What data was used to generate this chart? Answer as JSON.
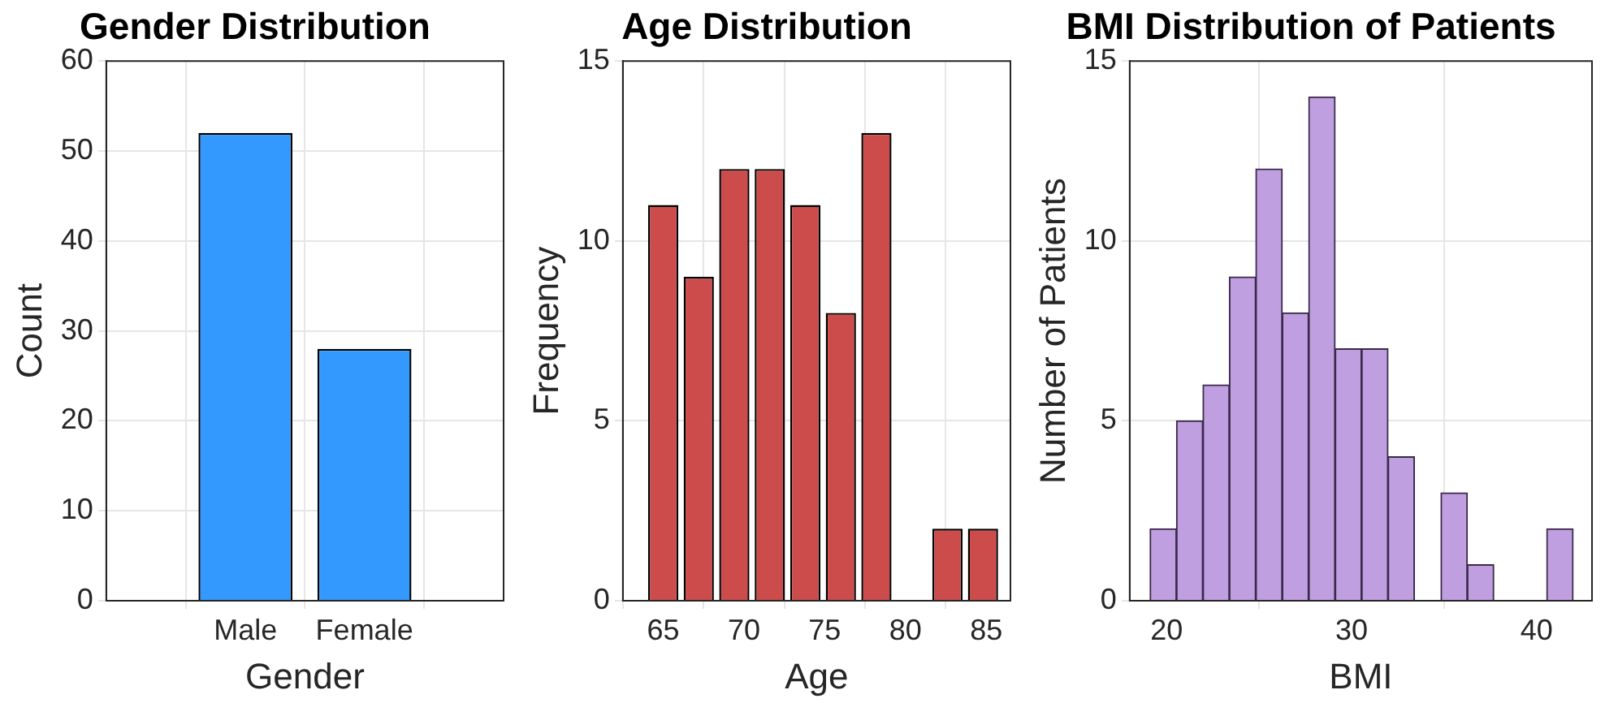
{
  "chart_data": [
    {
      "type": "bar",
      "title": "Gender Distribution",
      "xlabel": "Gender",
      "ylabel": "Count",
      "categories": [
        "Male",
        "Female"
      ],
      "values": [
        52,
        28
      ],
      "color": "#3399ff",
      "ylim": [
        0,
        60
      ],
      "yticks": [
        0,
        10,
        20,
        30,
        40,
        50,
        60
      ],
      "grid": true,
      "legend": false
    },
    {
      "type": "bar",
      "title": "Age Distribution",
      "xlabel": "Age",
      "ylabel": "Frequency",
      "x": [
        65,
        67.2,
        69.4,
        71.6,
        73.8,
        76,
        78.2,
        80.4,
        82.6,
        84.8
      ],
      "values": [
        11,
        9,
        12,
        12,
        11,
        8,
        13,
        0,
        2,
        2
      ],
      "color": "#cc4c4c",
      "xlim": [
        62.5,
        86.5
      ],
      "xticks": [
        65,
        70,
        75,
        80,
        85
      ],
      "ylim": [
        0,
        15
      ],
      "yticks": [
        0,
        5,
        10,
        15
      ],
      "grid": true,
      "legend": false
    },
    {
      "type": "histogram",
      "title": "BMI Distribution of Patients",
      "xlabel": "BMI",
      "ylabel": "Number of Patients",
      "bins": [
        19.1,
        20.53,
        21.96,
        23.39,
        24.82,
        26.25,
        27.68,
        29.11,
        30.54,
        31.97,
        33.4,
        34.83,
        36.26,
        37.69,
        39.12,
        40.55,
        41.98
      ],
      "values": [
        2,
        5,
        6,
        9,
        12,
        8,
        14,
        7,
        7,
        4,
        0,
        3,
        1,
        0,
        0,
        2
      ],
      "color": "#bf9fdf",
      "xlim": [
        18,
        43
      ],
      "xticks": [
        20,
        30,
        40
      ],
      "ylim": [
        0,
        15
      ],
      "yticks": [
        0,
        5,
        10,
        15
      ],
      "grid": true,
      "legend": false
    }
  ]
}
